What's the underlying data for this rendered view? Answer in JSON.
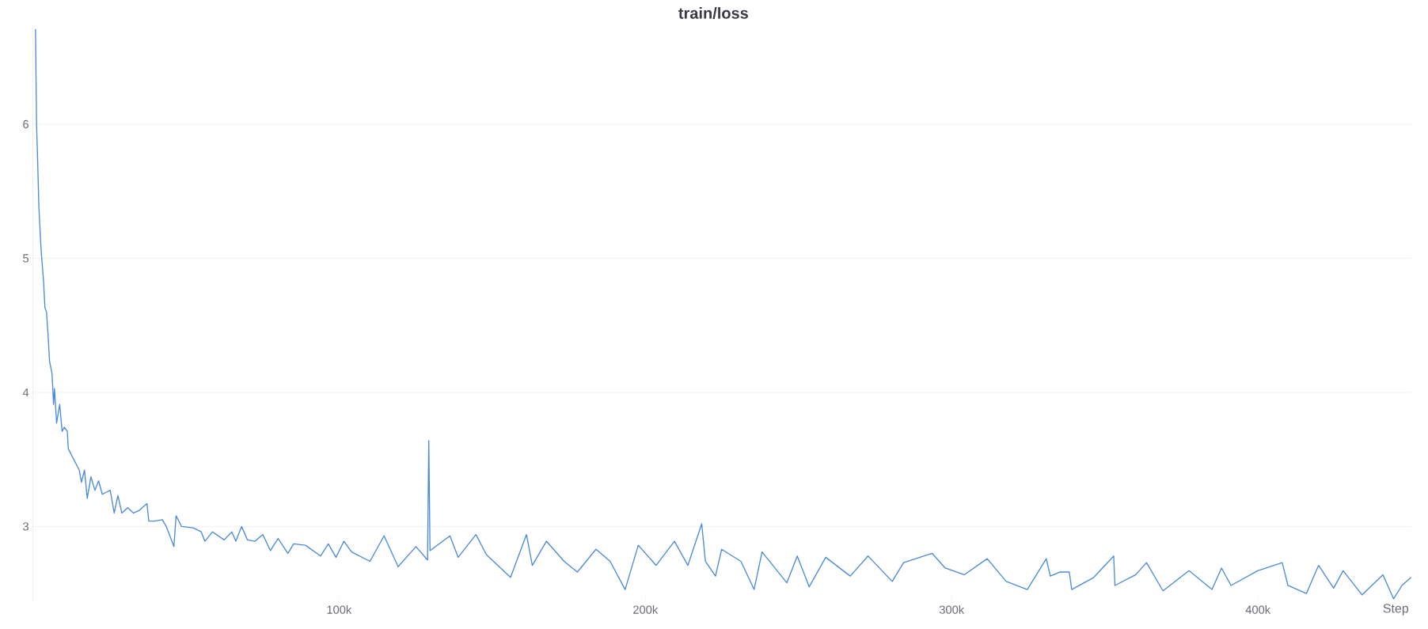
{
  "chart_data": {
    "type": "line",
    "title": "train/loss",
    "xlabel": "Step",
    "xlim": [
      0,
      450000
    ],
    "ylim": [
      2.44,
      6.72
    ],
    "xticks": [
      {
        "value": 100000,
        "label": "100k"
      },
      {
        "value": 200000,
        "label": "200k"
      },
      {
        "value": 300000,
        "label": "300k"
      },
      {
        "value": 400000,
        "label": "400k"
      }
    ],
    "yticks": [
      3,
      4,
      5,
      6
    ],
    "grid": "y",
    "series": [
      {
        "color": "#4a8ad8",
        "x": [
          900,
          1250,
          1500,
          2000,
          2250,
          2800,
          3500,
          4000,
          4500,
          5000,
          5500,
          6300,
          6800,
          7100,
          7800,
          8800,
          9600,
          10300,
          11300,
          11600,
          13400,
          15200,
          15900,
          16900,
          17800,
          19000,
          20300,
          21500,
          22700,
          25300,
          26600,
          27800,
          29100,
          31000,
          32900,
          34800,
          37300,
          37900,
          39800,
          42300,
          43600,
          46100,
          46800,
          48600,
          52400,
          55000,
          56200,
          58700,
          62500,
          65000,
          66300,
          68200,
          70100,
          72600,
          75100,
          77600,
          80100,
          83300,
          85200,
          89000,
          94000,
          96500,
          99000,
          101600,
          104100,
          110100,
          114700,
          119300,
          125100,
          128900,
          129300,
          129700,
          136200,
          138900,
          144700,
          148100,
          156000,
          161200,
          163100,
          167700,
          173500,
          177800,
          183900,
          188500,
          193400,
          197700,
          203500,
          209500,
          213900,
          218400,
          219600,
          222900,
          224900,
          231200,
          235500,
          238100,
          246200,
          249600,
          253500,
          258900,
          266900,
          272700,
          273100,
          280600,
          284300,
          293600,
          297900,
          304100,
          311600,
          317800,
          324700,
          330900,
          332200,
          335300,
          338400,
          339200,
          346400,
          352900,
          353300,
          360100,
          363600,
          369000,
          377500,
          385000,
          388100,
          391200,
          399900,
          407900,
          409800,
          415800,
          419800,
          424700,
          427800,
          434000,
          440800,
          444300,
          447000,
          450000
        ],
        "values": [
          6.71,
          5.99,
          5.82,
          5.39,
          5.27,
          5.04,
          4.84,
          4.63,
          4.6,
          4.43,
          4.23,
          4.14,
          3.91,
          4.03,
          3.77,
          3.91,
          3.71,
          3.74,
          3.71,
          3.58,
          3.5,
          3.42,
          3.33,
          3.42,
          3.21,
          3.37,
          3.27,
          3.34,
          3.24,
          3.27,
          3.1,
          3.23,
          3.1,
          3.14,
          3.1,
          3.12,
          3.17,
          3.04,
          3.04,
          3.05,
          3.0,
          2.85,
          3.08,
          3.0,
          2.99,
          2.96,
          2.89,
          2.96,
          2.9,
          2.96,
          2.89,
          3.0,
          2.9,
          2.89,
          2.94,
          2.82,
          2.91,
          2.8,
          2.87,
          2.86,
          2.78,
          2.87,
          2.77,
          2.89,
          2.81,
          2.74,
          2.93,
          2.7,
          2.85,
          2.75,
          3.64,
          2.82,
          2.93,
          2.77,
          2.94,
          2.79,
          2.62,
          2.94,
          2.71,
          2.89,
          2.74,
          2.66,
          2.83,
          2.74,
          2.53,
          2.86,
          2.71,
          2.89,
          2.71,
          3.02,
          2.74,
          2.63,
          2.83,
          2.74,
          2.53,
          2.81,
          2.58,
          2.78,
          2.55,
          2.77,
          2.63,
          2.78,
          2.77,
          2.59,
          2.73,
          2.8,
          2.69,
          2.64,
          2.76,
          2.59,
          2.53,
          2.76,
          2.63,
          2.66,
          2.66,
          2.53,
          2.62,
          2.78,
          2.56,
          2.64,
          2.73,
          2.52,
          2.67,
          2.53,
          2.69,
          2.56,
          2.67,
          2.73,
          2.56,
          2.5,
          2.71,
          2.54,
          2.67,
          2.49,
          2.64,
          2.46,
          2.56,
          2.62
        ]
      }
    ]
  }
}
